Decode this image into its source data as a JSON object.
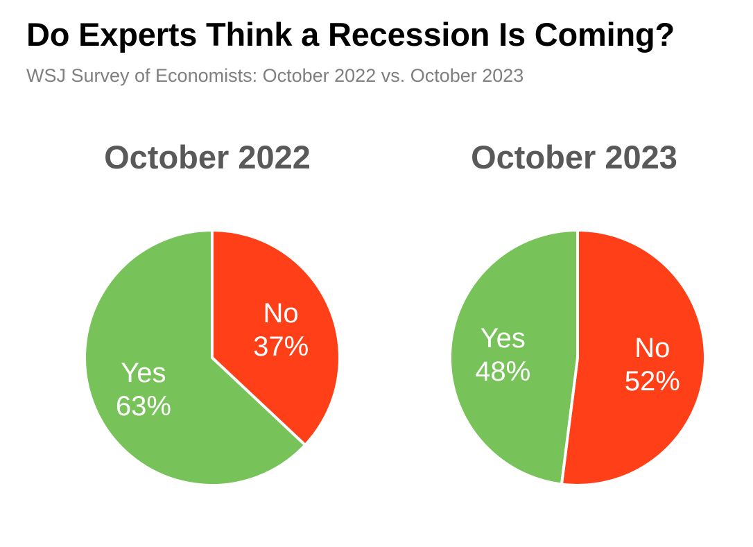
{
  "title": "Do Experts Think a Recession Is Coming?",
  "subtitle": "WSJ Survey of Economists: October 2022 vs. October 2023",
  "chart_data": [
    {
      "type": "pie",
      "title": "October 2022",
      "slices": [
        {
          "label": "No",
          "value": 37,
          "display": "37%",
          "color": "#ff3f17"
        },
        {
          "label": "Yes",
          "value": 63,
          "display": "63%",
          "color": "#77c35a"
        }
      ]
    },
    {
      "type": "pie",
      "title": "October 2023",
      "slices": [
        {
          "label": "No",
          "value": 52,
          "display": "52%",
          "color": "#ff3f17"
        },
        {
          "label": "Yes",
          "value": 48,
          "display": "48%",
          "color": "#77c35a"
        }
      ]
    }
  ]
}
